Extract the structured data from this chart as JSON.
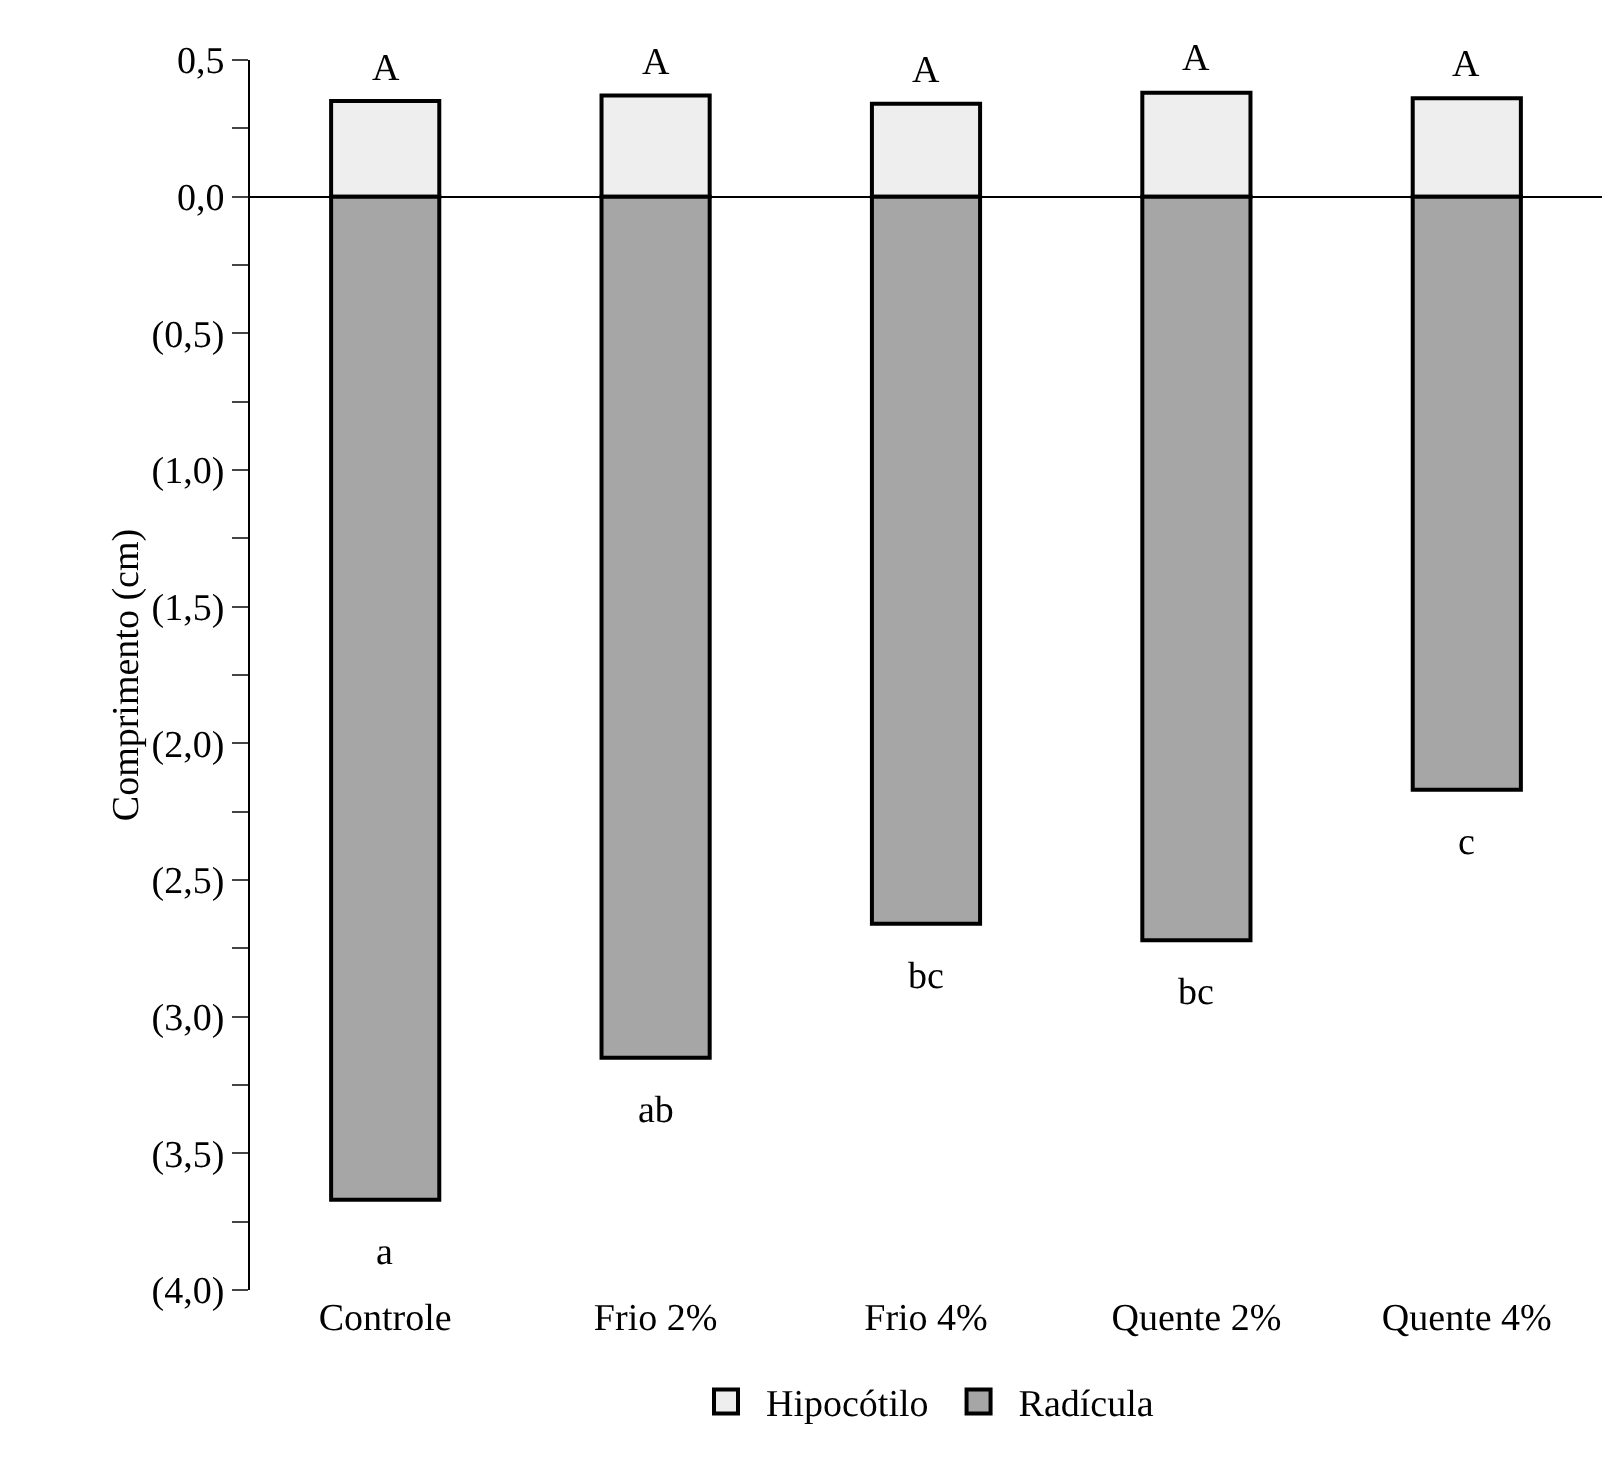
{
  "chart_data": {
    "type": "bar",
    "stacked": true,
    "ylabel": "Comprimento (cm)",
    "categories": [
      "Controle",
      "Frio 2%",
      "Frio 4%",
      "Quente 2%",
      "Quente 4%"
    ],
    "series": [
      {
        "name": "Hipocótilo",
        "color": "#eeeeee",
        "values": [
          0.35,
          0.37,
          0.34,
          0.38,
          0.36
        ]
      },
      {
        "name": "Radícula",
        "color": "#a6a6a6",
        "values": [
          -3.67,
          -3.15,
          -2.66,
          -2.72,
          -2.17
        ]
      }
    ],
    "ylim": [
      -4,
      0.5
    ],
    "yticks": [
      {
        "value": 0.5,
        "label": "0,5"
      },
      {
        "value": 0.25,
        "label": null
      },
      {
        "value": 0,
        "label": "0,0"
      },
      {
        "value": -0.25,
        "label": null
      },
      {
        "value": -0.5,
        "label": "(0,5)"
      },
      {
        "value": -0.75,
        "label": null
      },
      {
        "value": -1,
        "label": "(1,0)"
      },
      {
        "value": -1.25,
        "label": null
      },
      {
        "value": -1.5,
        "label": "(1,5)"
      },
      {
        "value": -1.75,
        "label": null
      },
      {
        "value": -2,
        "label": "(2,0)"
      },
      {
        "value": -2.25,
        "label": null
      },
      {
        "value": -2.5,
        "label": "(2,5)"
      },
      {
        "value": -2.75,
        "label": null
      },
      {
        "value": -3,
        "label": "(3,0)"
      },
      {
        "value": -3.25,
        "label": null
      },
      {
        "value": -3.5,
        "label": "(3,5)"
      },
      {
        "value": -3.75,
        "label": null
      },
      {
        "value": -4,
        "label": "(4,0)"
      }
    ],
    "annotations": [
      {
        "text": "A",
        "x": "Controle",
        "y": 0.35
      },
      {
        "text": "A",
        "x": "Frio 2%",
        "y": 0.37
      },
      {
        "text": "A",
        "x": "Frio 4%",
        "y": 0.34
      },
      {
        "text": "A",
        "x": "Quente 2%",
        "y": 0.38
      },
      {
        "text": "A",
        "x": "Quente 4%",
        "y": 0.36
      },
      {
        "text": "a",
        "x": "Controle",
        "y": -3.67
      },
      {
        "text": "ab",
        "x": "Frio 2%",
        "y": -3.15
      },
      {
        "text": "bc",
        "x": "Frio 4%",
        "y": -2.66
      },
      {
        "text": "bc",
        "x": "Quente 2%",
        "y": -2.72
      },
      {
        "text": "c",
        "x": "Quente 4%",
        "y": -2.17
      }
    ],
    "legend": "bottom"
  }
}
